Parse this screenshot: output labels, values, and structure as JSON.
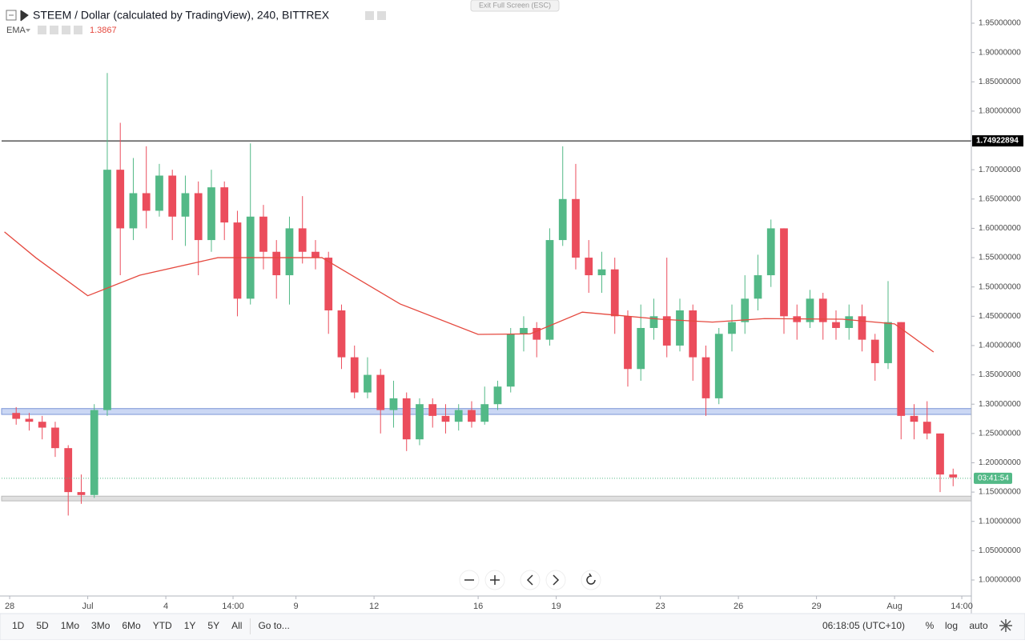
{
  "chart_data": {
    "type": "candlestick",
    "title": "STEEM / Dollar (calculated by TradingView), 240, BITTREX",
    "exit_fullscreen": "Exit Full Screen (ESC)",
    "up_color": "#53b987",
    "down_color": "#eb4d5c",
    "x": [
      0.25,
      0.75,
      1.25,
      1.75,
      2.25,
      2.75,
      3.25,
      3.75,
      4.25,
      4.75,
      5.25,
      5.75,
      6.25,
      6.75,
      7.25,
      7.75,
      8.25,
      8.75,
      9.25,
      9.75,
      10.25,
      10.75,
      11.25,
      11.75,
      12.25,
      12.75,
      13.25,
      13.75,
      14.25,
      14.75,
      15.25,
      15.75,
      16.25,
      16.75,
      17.25,
      17.75,
      18.25,
      18.75,
      19.25,
      19.75,
      20.25,
      20.75,
      21.25,
      21.75,
      22.25,
      22.75,
      23.25,
      23.75,
      24.25,
      24.75,
      25.25,
      25.75,
      26.25,
      26.75,
      27.25,
      27.75,
      28.25,
      28.75,
      29.25,
      29.75,
      30.25,
      30.75,
      31.25,
      31.75,
      32.25,
      32.75,
      33.25,
      33.75,
      34.25,
      34.75,
      35.25,
      35.75,
      36.25
    ],
    "open": [
      1.285,
      1.275,
      1.27,
      1.26,
      1.225,
      1.15,
      1.145,
      1.29,
      1.7,
      1.6,
      1.66,
      1.63,
      1.69,
      1.62,
      1.66,
      1.58,
      1.67,
      1.61,
      1.48,
      1.62,
      1.56,
      1.52,
      1.6,
      1.56,
      1.55,
      1.46,
      1.38,
      1.32,
      1.35,
      1.29,
      1.31,
      1.24,
      1.3,
      1.28,
      1.27,
      1.29,
      1.27,
      1.3,
      1.33,
      1.42,
      1.43,
      1.41,
      1.58,
      1.65,
      1.55,
      1.52,
      1.53,
      1.45,
      1.36,
      1.43,
      1.45,
      1.4,
      1.46,
      1.38,
      1.31,
      1.42,
      1.44,
      1.48,
      1.52,
      1.6,
      1.45,
      1.44,
      1.48,
      1.44,
      1.43,
      1.45,
      1.41,
      1.37,
      1.44,
      1.28,
      1.27,
      1.25,
      1.18
    ],
    "high": [
      1.295,
      1.285,
      1.28,
      1.27,
      1.23,
      1.18,
      1.3,
      1.865,
      1.78,
      1.72,
      1.74,
      1.71,
      1.7,
      1.69,
      1.68,
      1.7,
      1.68,
      1.63,
      1.745,
      1.64,
      1.58,
      1.62,
      1.655,
      1.58,
      1.56,
      1.47,
      1.4,
      1.38,
      1.36,
      1.34,
      1.32,
      1.31,
      1.31,
      1.3,
      1.3,
      1.305,
      1.33,
      1.34,
      1.43,
      1.45,
      1.44,
      1.6,
      1.74,
      1.71,
      1.58,
      1.56,
      1.55,
      1.46,
      1.47,
      1.48,
      1.55,
      1.48,
      1.47,
      1.4,
      1.43,
      1.47,
      1.52,
      1.555,
      1.615,
      1.6,
      1.47,
      1.495,
      1.49,
      1.46,
      1.47,
      1.47,
      1.42,
      1.51,
      1.44,
      1.3,
      1.305,
      1.25,
      1.19
    ],
    "low": [
      1.265,
      1.255,
      1.24,
      1.21,
      1.11,
      1.13,
      1.14,
      1.28,
      1.52,
      1.58,
      1.6,
      1.62,
      1.58,
      1.57,
      1.52,
      1.56,
      1.58,
      1.45,
      1.47,
      1.53,
      1.48,
      1.47,
      1.54,
      1.53,
      1.42,
      1.36,
      1.31,
      1.31,
      1.25,
      1.26,
      1.22,
      1.23,
      1.26,
      1.25,
      1.255,
      1.26,
      1.265,
      1.29,
      1.32,
      1.39,
      1.38,
      1.4,
      1.57,
      1.53,
      1.49,
      1.49,
      1.42,
      1.33,
      1.34,
      1.41,
      1.38,
      1.39,
      1.34,
      1.28,
      1.3,
      1.39,
      1.42,
      1.46,
      1.5,
      1.42,
      1.41,
      1.43,
      1.41,
      1.41,
      1.41,
      1.39,
      1.34,
      1.36,
      1.24,
      1.24,
      1.24,
      1.15,
      1.16
    ],
    "close": [
      1.275,
      1.27,
      1.26,
      1.225,
      1.15,
      1.145,
      1.29,
      1.7,
      1.6,
      1.66,
      1.63,
      1.69,
      1.62,
      1.66,
      1.58,
      1.67,
      1.61,
      1.48,
      1.62,
      1.56,
      1.52,
      1.6,
      1.56,
      1.55,
      1.46,
      1.38,
      1.32,
      1.35,
      1.29,
      1.31,
      1.24,
      1.3,
      1.28,
      1.27,
      1.29,
      1.27,
      1.3,
      1.33,
      1.42,
      1.43,
      1.41,
      1.58,
      1.65,
      1.55,
      1.52,
      1.53,
      1.45,
      1.36,
      1.43,
      1.45,
      1.4,
      1.46,
      1.38,
      1.31,
      1.42,
      1.44,
      1.48,
      1.52,
      1.6,
      1.45,
      1.44,
      1.48,
      1.44,
      1.43,
      1.45,
      1.41,
      1.37,
      1.44,
      1.28,
      1.27,
      1.25,
      1.18,
      1.175
    ],
    "ema": {
      "name": "EMA",
      "last": 1.3867,
      "color": "#e5493f",
      "x": [
        -0.2,
        1,
        3,
        5,
        8,
        12,
        15,
        18,
        20,
        22,
        25,
        27,
        29,
        32,
        34,
        35.5
      ],
      "values": [
        1.594,
        1.55,
        1.485,
        1.52,
        1.55,
        1.55,
        1.471,
        1.419,
        1.42,
        1.457,
        1.445,
        1.44,
        1.446,
        1.445,
        1.437,
        1.389
      ]
    },
    "hlines": [
      {
        "value": 1.74922894,
        "color": "#000000"
      }
    ],
    "price_line": {
      "value": 1.1735,
      "label": "03:41:54",
      "color": "#53b987"
    },
    "zones": [
      {
        "from": 1.2825,
        "to": 1.2925,
        "color": "#c5d3f3"
      },
      {
        "from": 1.135,
        "to": 1.143,
        "color": "#dddddd"
      }
    ],
    "xlim": [
      -0.31,
      36.95
    ],
    "xticks": [
      {
        "value": 0,
        "label": "28"
      },
      {
        "value": 3,
        "label": "Jul"
      },
      {
        "value": 6,
        "label": "4"
      },
      {
        "value": 8.583,
        "label": "14:00"
      },
      {
        "value": 11,
        "label": "9"
      },
      {
        "value": 14,
        "label": "12"
      },
      {
        "value": 18,
        "label": "16"
      },
      {
        "value": 21,
        "label": "19"
      },
      {
        "value": 25,
        "label": "23"
      },
      {
        "value": 28,
        "label": "26"
      },
      {
        "value": 31,
        "label": "29"
      },
      {
        "value": 34,
        "label": "Aug"
      },
      {
        "value": 36.583,
        "label": "14:00"
      }
    ],
    "ylim": [
      0.9727,
      1.9896
    ],
    "yticks": [
      {
        "value": 1,
        "label": "1.00000000"
      },
      {
        "value": 1.05,
        "label": "1.05000000"
      },
      {
        "value": 1.1,
        "label": "1.10000000"
      },
      {
        "value": 1.15,
        "label": "1.15000000"
      },
      {
        "value": 1.2,
        "label": "1.20000000"
      },
      {
        "value": 1.25,
        "label": "1.25000000"
      },
      {
        "value": 1.3,
        "label": "1.30000000"
      },
      {
        "value": 1.35,
        "label": "1.35000000"
      },
      {
        "value": 1.4,
        "label": "1.40000000"
      },
      {
        "value": 1.45,
        "label": "1.45000000"
      },
      {
        "value": 1.5,
        "label": "1.50000000"
      },
      {
        "value": 1.55,
        "label": "1.55000000"
      },
      {
        "value": 1.6,
        "label": "1.60000000"
      },
      {
        "value": 1.65,
        "label": "1.65000000"
      },
      {
        "value": 1.7,
        "label": "1.70000000"
      },
      {
        "value": 1.75,
        "label": "1.75000000"
      },
      {
        "value": 1.8,
        "label": "1.80000000"
      },
      {
        "value": 1.85,
        "label": "1.85000000"
      },
      {
        "value": 1.9,
        "label": "1.90000000"
      },
      {
        "value": 1.95,
        "label": "1.95000000"
      }
    ]
  },
  "toolbar": {
    "ranges": [
      "1D",
      "5D",
      "1Mo",
      "3Mo",
      "6Mo",
      "YTD",
      "1Y",
      "5Y",
      "All"
    ],
    "goto": "Go to...",
    "clock": "06:18:05 (UTC+10)",
    "scale_options": [
      "%",
      "log",
      "auto"
    ]
  }
}
